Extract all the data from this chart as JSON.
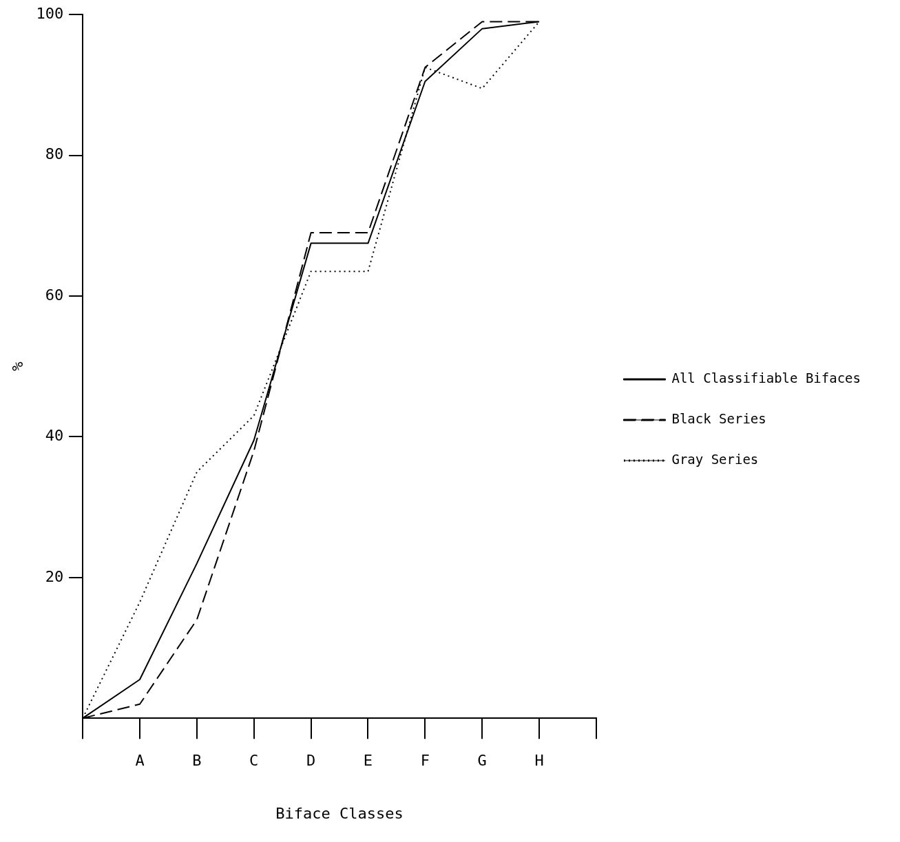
{
  "chart_data": {
    "type": "line",
    "xlabel": "Biface Classes",
    "ylabel": "%",
    "categories": [
      null,
      "A",
      "B",
      "C",
      "D",
      "E",
      "F",
      "G",
      "H",
      null
    ],
    "series": [
      {
        "name": "All Classifiable Bifaces",
        "color": "#000000",
        "line_style": "solid",
        "values": [
          0,
          5.5,
          22,
          39.5,
          67.5,
          67.5,
          90.5,
          98,
          99,
          null
        ]
      },
      {
        "name": "Black Series",
        "color": "#000000",
        "line_style": "dashed",
        "values": [
          0,
          2,
          14,
          38,
          69,
          69,
          92.5,
          99,
          99,
          null
        ]
      },
      {
        "name": "Gray Series",
        "color": "#000000",
        "line_style": "dotted",
        "values": [
          0,
          16.5,
          35,
          43,
          63.5,
          63.5,
          92.5,
          89.5,
          99,
          null
        ]
      }
    ],
    "ylim": [
      0,
      100
    ],
    "yticks": [
      20,
      40,
      60,
      80,
      100
    ],
    "grid": false,
    "legend": "right",
    "marker": "none"
  }
}
